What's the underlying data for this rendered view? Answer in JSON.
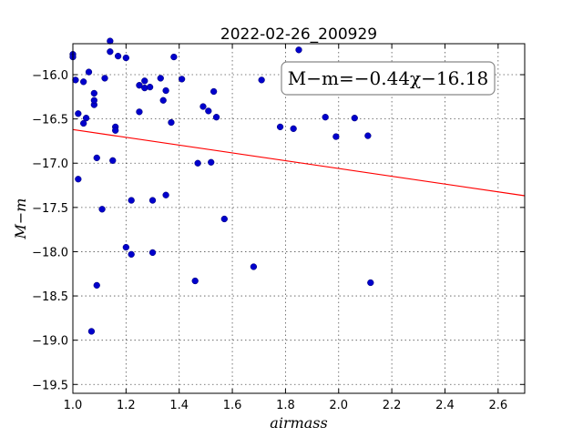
{
  "chart_data": {
    "type": "scatter",
    "title": "2022-02-26_200929",
    "xlabel": "airmass",
    "ylabel": "M−m",
    "xlim": [
      1.0,
      2.7
    ],
    "ylim": [
      -15.65,
      -19.6
    ],
    "y_inverted": true,
    "grid": true,
    "x_ticks": [
      1.0,
      1.2,
      1.4,
      1.6,
      1.8,
      2.0,
      2.2,
      2.4,
      2.6
    ],
    "x_tick_labels": [
      "1.0",
      "1.2",
      "1.4",
      "1.6",
      "1.8",
      "2.0",
      "2.2",
      "2.4",
      "2.6"
    ],
    "y_ticks": [
      -16.0,
      -16.5,
      -17.0,
      -17.5,
      -18.0,
      -18.5,
      -19.0,
      -19.5
    ],
    "y_tick_labels": [
      "−16.0",
      "−16.5",
      "−17.0",
      "−17.5",
      "−18.0",
      "−18.5",
      "−19.0",
      "−19.5"
    ],
    "annotation": "M−m=−0.44χ−16.18",
    "annotation_position": "top-right",
    "colors": {
      "points": "#0000cc",
      "fit_line": "#ff0000"
    },
    "fit_line": {
      "slope": -0.44,
      "intercept": -16.18
    },
    "points": [
      {
        "x": 1.0,
        "y": -15.77
      },
      {
        "x": 1.0,
        "y": -15.8
      },
      {
        "x": 1.01,
        "y": -16.06
      },
      {
        "x": 1.02,
        "y": -16.44
      },
      {
        "x": 1.02,
        "y": -17.18
      },
      {
        "x": 1.04,
        "y": -16.08
      },
      {
        "x": 1.04,
        "y": -16.55
      },
      {
        "x": 1.05,
        "y": -16.49
      },
      {
        "x": 1.06,
        "y": -15.97
      },
      {
        "x": 1.07,
        "y": -18.9
      },
      {
        "x": 1.08,
        "y": -16.34
      },
      {
        "x": 1.08,
        "y": -16.29
      },
      {
        "x": 1.08,
        "y": -16.21
      },
      {
        "x": 1.09,
        "y": -16.94
      },
      {
        "x": 1.09,
        "y": -18.38
      },
      {
        "x": 1.11,
        "y": -17.52
      },
      {
        "x": 1.12,
        "y": -16.04
      },
      {
        "x": 1.14,
        "y": -15.62
      },
      {
        "x": 1.14,
        "y": -15.74
      },
      {
        "x": 1.15,
        "y": -16.97
      },
      {
        "x": 1.16,
        "y": -16.59
      },
      {
        "x": 1.16,
        "y": -16.63
      },
      {
        "x": 1.17,
        "y": -15.79
      },
      {
        "x": 1.2,
        "y": -15.81
      },
      {
        "x": 1.2,
        "y": -17.95
      },
      {
        "x": 1.22,
        "y": -18.03
      },
      {
        "x": 1.22,
        "y": -17.42
      },
      {
        "x": 1.25,
        "y": -16.12
      },
      {
        "x": 1.25,
        "y": -16.42
      },
      {
        "x": 1.27,
        "y": -16.15
      },
      {
        "x": 1.27,
        "y": -16.07
      },
      {
        "x": 1.29,
        "y": -16.14
      },
      {
        "x": 1.3,
        "y": -17.42
      },
      {
        "x": 1.3,
        "y": -18.01
      },
      {
        "x": 1.33,
        "y": -16.04
      },
      {
        "x": 1.34,
        "y": -16.29
      },
      {
        "x": 1.35,
        "y": -17.36
      },
      {
        "x": 1.35,
        "y": -16.18
      },
      {
        "x": 1.37,
        "y": -16.54
      },
      {
        "x": 1.38,
        "y": -15.8
      },
      {
        "x": 1.41,
        "y": -16.05
      },
      {
        "x": 1.46,
        "y": -18.33
      },
      {
        "x": 1.47,
        "y": -17.0
      },
      {
        "x": 1.49,
        "y": -16.36
      },
      {
        "x": 1.51,
        "y": -16.41
      },
      {
        "x": 1.52,
        "y": -16.99
      },
      {
        "x": 1.53,
        "y": -16.19
      },
      {
        "x": 1.54,
        "y": -16.48
      },
      {
        "x": 1.57,
        "y": -17.63
      },
      {
        "x": 1.68,
        "y": -18.17
      },
      {
        "x": 1.71,
        "y": -16.06
      },
      {
        "x": 1.78,
        "y": -16.59
      },
      {
        "x": 1.83,
        "y": -16.61
      },
      {
        "x": 1.85,
        "y": -15.72
      },
      {
        "x": 1.95,
        "y": -16.48
      },
      {
        "x": 1.99,
        "y": -16.7
      },
      {
        "x": 2.06,
        "y": -16.49
      },
      {
        "x": 2.11,
        "y": -16.69
      },
      {
        "x": 2.12,
        "y": -18.35
      }
    ]
  }
}
